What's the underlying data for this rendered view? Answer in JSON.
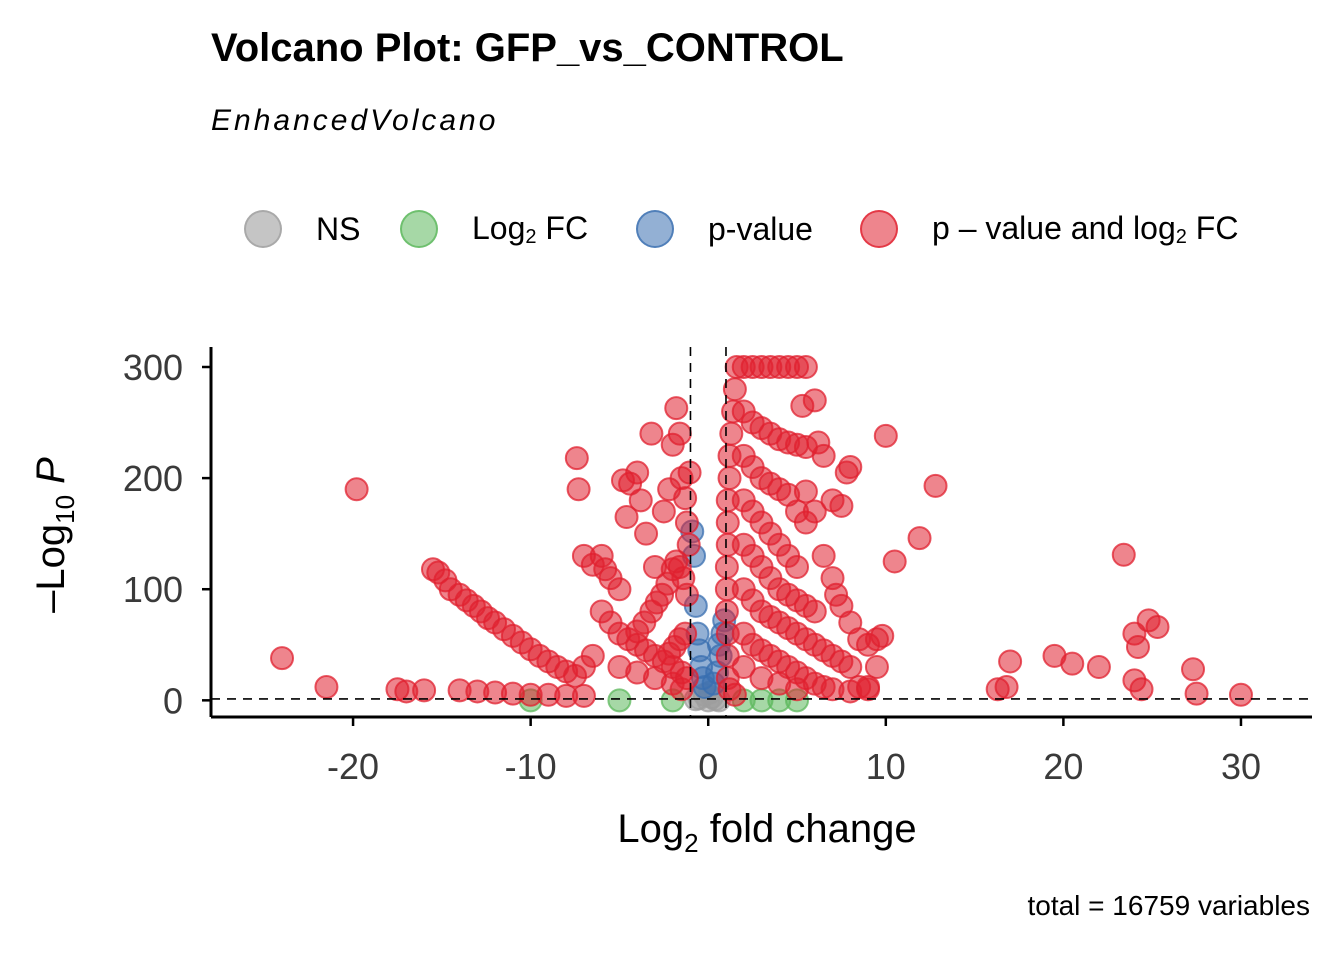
{
  "header": {
    "title": "Volcano Plot: GFP_vs_CONTROL",
    "subtitle": "EnhancedVolcano",
    "caption": "total = 16759 variables"
  },
  "legend": [
    {
      "label": "NS",
      "color": "#9e9e9e"
    },
    {
      "label": "Log",
      "sub": "2",
      "suffix": " FC",
      "color": "#5cb85c"
    },
    {
      "label": "p-value",
      "color": "#3a6fb0"
    },
    {
      "label": "p – value and log",
      "sub": "2",
      "suffix": " FC",
      "color": "#e0202f"
    }
  ],
  "chart_data": {
    "type": "scatter",
    "title": "Volcano Plot: GFP_vs_CONTROL",
    "subtitle": "EnhancedVolcano",
    "caption": "total = 16759 variables",
    "xlabel": "Log2 fold change",
    "ylabel": "–Log10 P",
    "xlim": [
      -28,
      34
    ],
    "ylim": [
      -15,
      318
    ],
    "x_ticks": [
      -20,
      -10,
      0,
      10,
      20,
      30
    ],
    "y_ticks": [
      0,
      100,
      200,
      300
    ],
    "fc_cutoff": [
      -1,
      1
    ],
    "p_cutoff_log10": 1.3,
    "grid": false,
    "legend_position": "top",
    "series": [
      {
        "name": "NS",
        "color": "#9e9e9e",
        "points": [
          [
            0,
            0
          ],
          [
            -0.5,
            2
          ],
          [
            0.4,
            1
          ],
          [
            0.2,
            3
          ],
          [
            -0.2,
            5
          ],
          [
            0.6,
            0
          ],
          [
            -0.7,
            1
          ],
          [
            0.1,
            7
          ]
        ]
      },
      {
        "name": "Log2 FC",
        "color": "#5cb85c",
        "points": [
          [
            -10,
            0
          ],
          [
            -5,
            0
          ],
          [
            -2,
            0
          ],
          [
            2,
            0
          ],
          [
            3,
            0
          ],
          [
            4,
            0
          ],
          [
            5,
            0
          ]
        ]
      },
      {
        "name": "p-value",
        "color": "#3a6fb0",
        "points": [
          [
            -0.9,
            152
          ],
          [
            -0.8,
            130
          ],
          [
            -0.7,
            85
          ],
          [
            -0.6,
            60
          ],
          [
            -0.5,
            45
          ],
          [
            -0.4,
            30
          ],
          [
            -0.3,
            20
          ],
          [
            -0.2,
            12
          ],
          [
            0.3,
            15
          ],
          [
            0.5,
            25
          ],
          [
            0.7,
            40
          ],
          [
            0.8,
            60
          ],
          [
            0.9,
            72
          ],
          [
            0.6,
            50
          ]
        ]
      },
      {
        "name": "p – value and log2 FC",
        "color": "#e0202f",
        "points": [
          [
            -24,
            38
          ],
          [
            -21.5,
            12
          ],
          [
            -19.8,
            190
          ],
          [
            -17.5,
            10
          ],
          [
            -17,
            8
          ],
          [
            -16,
            9
          ],
          [
            -15.5,
            118
          ],
          [
            -15.2,
            115
          ],
          [
            -14.8,
            108
          ],
          [
            -14.5,
            100
          ],
          [
            -14,
            95
          ],
          [
            -13.6,
            90
          ],
          [
            -13.2,
            85
          ],
          [
            -12.8,
            80
          ],
          [
            -12.4,
            74
          ],
          [
            -12,
            70
          ],
          [
            -11.5,
            64
          ],
          [
            -11,
            58
          ],
          [
            -10.5,
            52
          ],
          [
            -10,
            46
          ],
          [
            -9.5,
            40
          ],
          [
            -9,
            35
          ],
          [
            -8.5,
            30
          ],
          [
            -8,
            26
          ],
          [
            -7.5,
            22
          ],
          [
            -14,
            9
          ],
          [
            -13,
            8
          ],
          [
            -12,
            7
          ],
          [
            -11,
            6
          ],
          [
            -10,
            5
          ],
          [
            -9,
            5
          ],
          [
            -8,
            4
          ],
          [
            -7,
            4
          ],
          [
            -7.4,
            218
          ],
          [
            -7.3,
            190
          ],
          [
            -7,
            130
          ],
          [
            -6.5,
            122
          ],
          [
            -6,
            130
          ],
          [
            -5.8,
            118
          ],
          [
            -5.5,
            110
          ],
          [
            -5,
            100
          ],
          [
            -4.8,
            198
          ],
          [
            -4.6,
            165
          ],
          [
            -4.4,
            195
          ],
          [
            -4,
            205
          ],
          [
            -3.8,
            180
          ],
          [
            -3.5,
            150
          ],
          [
            -3.2,
            240
          ],
          [
            -3,
            120
          ],
          [
            -2.5,
            170
          ],
          [
            -2.2,
            190
          ],
          [
            -2,
            230
          ],
          [
            -1.8,
            263
          ],
          [
            -1.6,
            240
          ],
          [
            -1.5,
            200
          ],
          [
            -1.3,
            182
          ],
          [
            -1.2,
            160
          ],
          [
            -1.1,
            140
          ],
          [
            -1.05,
            205
          ],
          [
            -6,
            80
          ],
          [
            -5.5,
            70
          ],
          [
            -5,
            60
          ],
          [
            -4.5,
            55
          ],
          [
            -4,
            50
          ],
          [
            -3.5,
            45
          ],
          [
            -3,
            40
          ],
          [
            -2.5,
            35
          ],
          [
            -2,
            30
          ],
          [
            -1.5,
            25
          ],
          [
            -1.2,
            20
          ],
          [
            -6.5,
            40
          ],
          [
            -7,
            30
          ],
          [
            -5,
            30
          ],
          [
            -4,
            25
          ],
          [
            -3,
            20
          ],
          [
            -2,
            15
          ],
          [
            -1.5,
            10
          ],
          [
            -1.2,
            95
          ],
          [
            -1.4,
            110
          ],
          [
            -1.6,
            120
          ],
          [
            -1.8,
            125
          ],
          [
            -2,
            118
          ],
          [
            -2.3,
            105
          ],
          [
            -2.6,
            95
          ],
          [
            -2.9,
            88
          ],
          [
            -3.2,
            80
          ],
          [
            -3.6,
            70
          ],
          [
            -4,
            62
          ],
          [
            -1.3,
            60
          ],
          [
            -1.6,
            55
          ],
          [
            -1.9,
            48
          ],
          [
            -2.2,
            42
          ],
          [
            1.6,
            300
          ],
          [
            2,
            300
          ],
          [
            2.5,
            300
          ],
          [
            3,
            300
          ],
          [
            3.5,
            300
          ],
          [
            4,
            300
          ],
          [
            4.5,
            300
          ],
          [
            5,
            300
          ],
          [
            5.5,
            300
          ],
          [
            1.5,
            280
          ],
          [
            1.4,
            260
          ],
          [
            1.3,
            240
          ],
          [
            1.2,
            220
          ],
          [
            1.2,
            200
          ],
          [
            1.1,
            180
          ],
          [
            1.1,
            160
          ],
          [
            1.1,
            140
          ],
          [
            1.05,
            120
          ],
          [
            1.05,
            100
          ],
          [
            1.05,
            80
          ],
          [
            1.1,
            60
          ],
          [
            1.1,
            40
          ],
          [
            1.1,
            20
          ],
          [
            1.2,
            10
          ],
          [
            2,
            260
          ],
          [
            2.5,
            250
          ],
          [
            3,
            245
          ],
          [
            3.5,
            240
          ],
          [
            4,
            235
          ],
          [
            4.5,
            232
          ],
          [
            5,
            230
          ],
          [
            5.5,
            228
          ],
          [
            2,
            220
          ],
          [
            2.5,
            210
          ],
          [
            3,
            200
          ],
          [
            3.5,
            195
          ],
          [
            4,
            190
          ],
          [
            4.5,
            185
          ],
          [
            5,
            170
          ],
          [
            5.5,
            160
          ],
          [
            2,
            180
          ],
          [
            2.5,
            170
          ],
          [
            3,
            160
          ],
          [
            3.5,
            150
          ],
          [
            4,
            140
          ],
          [
            4.5,
            130
          ],
          [
            5,
            120
          ],
          [
            2,
            140
          ],
          [
            2.5,
            130
          ],
          [
            3,
            120
          ],
          [
            3.5,
            110
          ],
          [
            4,
            100
          ],
          [
            4.5,
            95
          ],
          [
            5,
            90
          ],
          [
            5.5,
            85
          ],
          [
            6,
            80
          ],
          [
            2,
            100
          ],
          [
            2.5,
            90
          ],
          [
            3,
            80
          ],
          [
            3.5,
            75
          ],
          [
            4,
            70
          ],
          [
            4.5,
            65
          ],
          [
            5,
            60
          ],
          [
            5.5,
            55
          ],
          [
            6,
            50
          ],
          [
            6.5,
            45
          ],
          [
            7,
            40
          ],
          [
            7.5,
            35
          ],
          [
            8,
            30
          ],
          [
            2,
            60
          ],
          [
            2.5,
            50
          ],
          [
            3,
            45
          ],
          [
            3.5,
            40
          ],
          [
            4,
            35
          ],
          [
            4.5,
            30
          ],
          [
            5,
            25
          ],
          [
            5.5,
            20
          ],
          [
            6,
            15
          ],
          [
            6.5,
            12
          ],
          [
            7,
            10
          ],
          [
            8,
            8
          ],
          [
            9,
            12
          ],
          [
            2,
            30
          ],
          [
            3,
            20
          ],
          [
            4,
            15
          ],
          [
            5,
            10
          ],
          [
            1.5,
            5
          ],
          [
            5.3,
            265
          ],
          [
            6,
            270
          ],
          [
            6.2,
            232
          ],
          [
            6.5,
            220
          ],
          [
            7,
            180
          ],
          [
            7.5,
            175
          ],
          [
            7.8,
            205
          ],
          [
            8,
            210
          ],
          [
            6,
            170
          ],
          [
            5.5,
            188
          ],
          [
            6.5,
            130
          ],
          [
            7,
            110
          ],
          [
            7.2,
            95
          ],
          [
            7.5,
            85
          ],
          [
            8,
            70
          ],
          [
            8.5,
            55
          ],
          [
            9,
            50
          ],
          [
            9.5,
            55
          ],
          [
            9.8,
            58
          ],
          [
            10,
            238
          ],
          [
            10.5,
            125
          ],
          [
            11.9,
            146
          ],
          [
            12.8,
            193
          ],
          [
            9.5,
            30
          ],
          [
            9,
            10
          ],
          [
            8.5,
            12
          ],
          [
            16.3,
            10
          ],
          [
            16.8,
            12
          ],
          [
            17,
            35
          ],
          [
            19.5,
            40
          ],
          [
            20.5,
            33
          ],
          [
            22,
            30
          ],
          [
            23.4,
            131
          ],
          [
            24,
            60
          ],
          [
            24.2,
            48
          ],
          [
            24.8,
            72
          ],
          [
            25.3,
            66
          ],
          [
            24,
            18
          ],
          [
            24.4,
            10
          ],
          [
            27.3,
            28
          ],
          [
            27.5,
            6
          ],
          [
            30,
            5
          ]
        ]
      }
    ]
  }
}
